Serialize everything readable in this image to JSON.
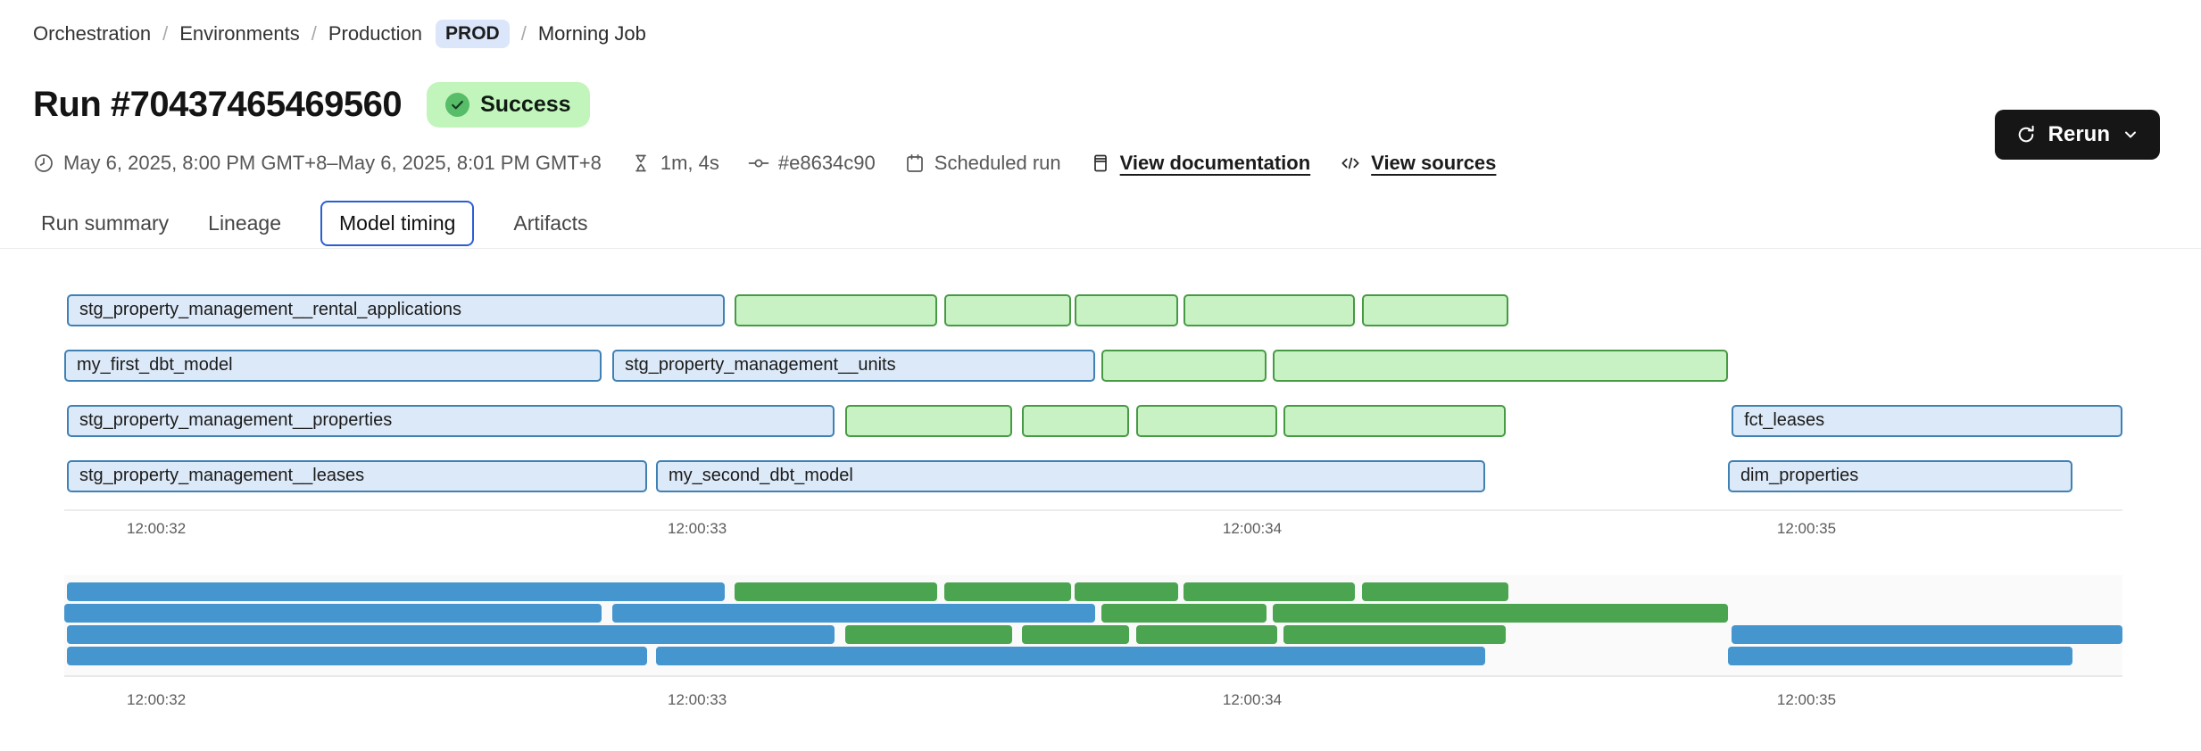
{
  "breadcrumb": {
    "separator": "/",
    "items": [
      "Orchestration",
      "Environments",
      "Production"
    ],
    "env_badge": "PROD",
    "current": "Morning Job"
  },
  "run": {
    "title": "Run #70437465469560",
    "status": "Success"
  },
  "meta": {
    "time_range": "May 6, 2025, 8:00 PM GMT+8–May 6, 2025, 8:01 PM GMT+8",
    "duration": "1m, 4s",
    "commit": "#e8634c90",
    "trigger": "Scheduled run",
    "view_documentation": "View documentation",
    "view_sources": "View sources"
  },
  "actions": {
    "rerun_label": "Rerun"
  },
  "tabs": [
    {
      "label": "Run summary",
      "active": false
    },
    {
      "label": "Lineage",
      "active": false
    },
    {
      "label": "Model timing",
      "active": true
    },
    {
      "label": "Artifacts",
      "active": false
    }
  ],
  "colors": {
    "accent_blue": "#2a5fd3",
    "pill_blue_bg": "#dbe6fb",
    "badge_green_bg": "#c2f5bb",
    "check_green": "#57bd68",
    "rerun_bg": "#161616",
    "model_fill": "#dce9f8",
    "model_border": "#3f81b4",
    "test_fill": "#c9f2c4",
    "test_border": "#469a44",
    "mini_model": "#4596cf",
    "mini_test": "#4ba44f"
  },
  "chart_data": {
    "type": "gantt",
    "title": "Model timing",
    "x_axis": {
      "unit": "time",
      "grid": false
    },
    "x_ticks": [
      {
        "label": "12:00:32",
        "pos_pct": 4.47
      },
      {
        "label": "12:00:33",
        "pos_pct": 30.75
      },
      {
        "label": "12:00:34",
        "pos_pct": 57.72
      },
      {
        "label": "12:00:35",
        "pos_pct": 84.65
      }
    ],
    "rows": [
      {
        "bars": [
          {
            "name": "stg_property_management__rental_applications",
            "kind": "model",
            "left_pct": 0.13,
            "width_pct": 31.96,
            "start": "12:00:31.8",
            "end": "12:00:33.0"
          },
          {
            "name": "",
            "kind": "test",
            "left_pct": 32.57,
            "width_pct": 9.84,
            "start": "12:00:33.0",
            "end": "12:00:33.4"
          },
          {
            "name": "",
            "kind": "test",
            "left_pct": 42.76,
            "width_pct": 6.16,
            "start": "12:00:33.4",
            "end": "12:00:33.7"
          },
          {
            "name": "",
            "kind": "test",
            "left_pct": 49.09,
            "width_pct": 5.03,
            "start": "12:00:33.7",
            "end": "12:00:33.9"
          },
          {
            "name": "",
            "kind": "test",
            "left_pct": 54.38,
            "width_pct": 8.33,
            "start": "12:00:33.9",
            "end": "12:00:34.2"
          },
          {
            "name": "",
            "kind": "test",
            "left_pct": 63.05,
            "width_pct": 7.11,
            "start": "12:00:34.2",
            "end": "12:00:34.5"
          }
        ]
      },
      {
        "bars": [
          {
            "name": "my_first_dbt_model",
            "kind": "model",
            "left_pct": 0,
            "width_pct": 26.11,
            "start": "12:00:31.8",
            "end": "12:00:32.8"
          },
          {
            "name": "stg_property_management__units",
            "kind": "model",
            "left_pct": 26.63,
            "width_pct": 23.46,
            "start": "12:00:32.8",
            "end": "12:00:33.7"
          },
          {
            "name": "",
            "kind": "test",
            "left_pct": 50.39,
            "width_pct": 8.02,
            "start": "12:00:33.7",
            "end": "12:00:34.0"
          },
          {
            "name": "",
            "kind": "test",
            "left_pct": 58.72,
            "width_pct": 22.12,
            "start": "12:00:34.0",
            "end": "12:00:34.9"
          }
        ]
      },
      {
        "bars": [
          {
            "name": "stg_property_management__properties",
            "kind": "model",
            "left_pct": 0.13,
            "width_pct": 37.29,
            "start": "12:00:31.8",
            "end": "12:00:33.2"
          },
          {
            "name": "",
            "kind": "test",
            "left_pct": 37.94,
            "width_pct": 8.11,
            "start": "12:00:33.2",
            "end": "12:00:33.6"
          },
          {
            "name": "",
            "kind": "test",
            "left_pct": 46.53,
            "width_pct": 5.2,
            "start": "12:00:33.6",
            "end": "12:00:33.8"
          },
          {
            "name": "",
            "kind": "test",
            "left_pct": 52.08,
            "width_pct": 6.85,
            "start": "12:00:33.8",
            "end": "12:00:34.0"
          },
          {
            "name": "",
            "kind": "test",
            "left_pct": 59.24,
            "width_pct": 10.8,
            "start": "12:00:34.1",
            "end": "12:00:34.5"
          },
          {
            "name": "fct_leases",
            "kind": "model",
            "left_pct": 81.01,
            "width_pct": 18.99,
            "start": "12:00:34.9",
            "end": "12:00:35.6"
          }
        ]
      },
      {
        "bars": [
          {
            "name": "stg_property_management__leases",
            "kind": "model",
            "left_pct": 0.13,
            "width_pct": 28.19,
            "start": "12:00:31.8",
            "end": "12:00:32.9"
          },
          {
            "name": "my_second_dbt_model",
            "kind": "model",
            "left_pct": 28.75,
            "width_pct": 40.29,
            "start": "12:00:32.9",
            "end": "12:00:34.4"
          },
          {
            "name": "dim_properties",
            "kind": "model",
            "left_pct": 80.83,
            "width_pct": 16.74,
            "start": "12:00:34.9",
            "end": "12:00:35.5"
          }
        ]
      }
    ],
    "legend": {
      "model_color_meaning": "model",
      "test_color_meaning": "test"
    }
  }
}
